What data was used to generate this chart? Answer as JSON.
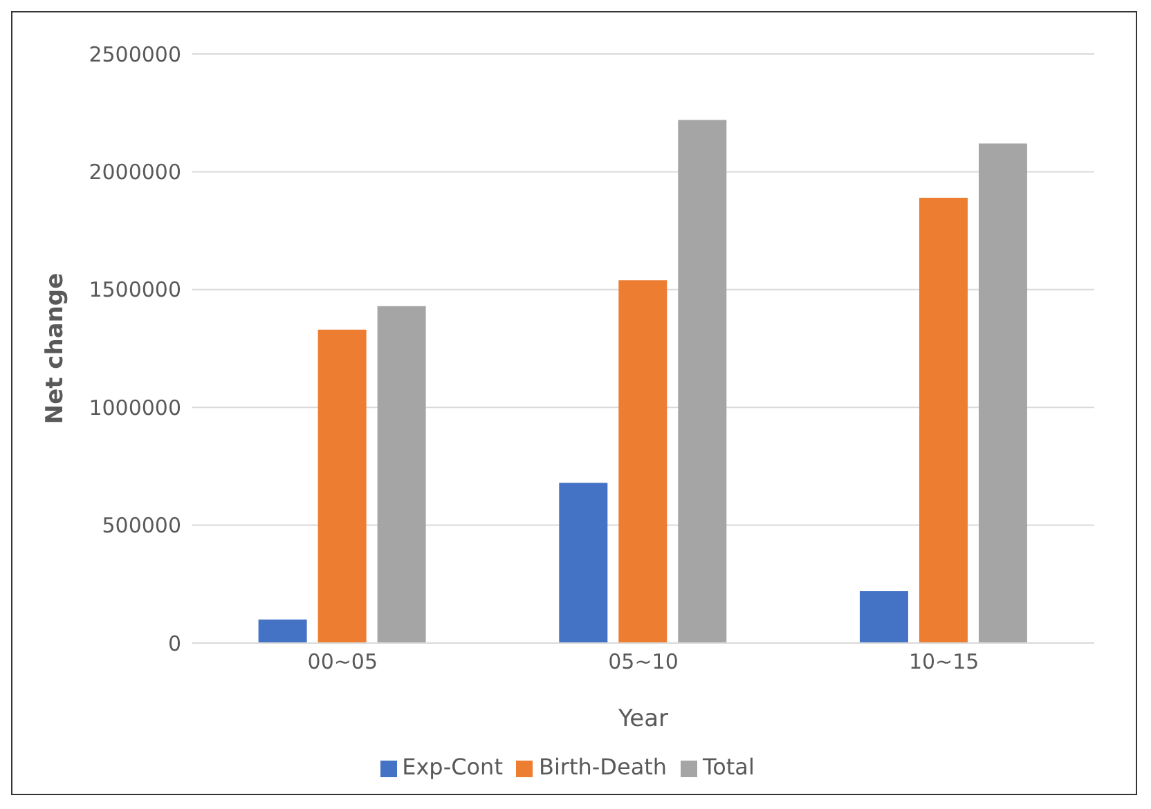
{
  "chart_data": {
    "type": "bar",
    "xlabel": "Year",
    "ylabel": "Net change",
    "categories": [
      "00~05",
      "05~10",
      "10~15"
    ],
    "series": [
      {
        "name": "Exp-Cont",
        "color": "#4472c4",
        "values": [
          100000,
          680000,
          220000
        ]
      },
      {
        "name": "Birth-Death",
        "color": "#ed7d31",
        "values": [
          1330000,
          1540000,
          1890000
        ]
      },
      {
        "name": "Total",
        "color": "#a5a5a5",
        "values": [
          1430000,
          2220000,
          2120000
        ]
      }
    ],
    "ylim": [
      0,
      2500000
    ],
    "yticks": [
      0,
      500000,
      1000000,
      1500000,
      2000000,
      2500000
    ],
    "grid": "y",
    "legend": "bottom"
  }
}
